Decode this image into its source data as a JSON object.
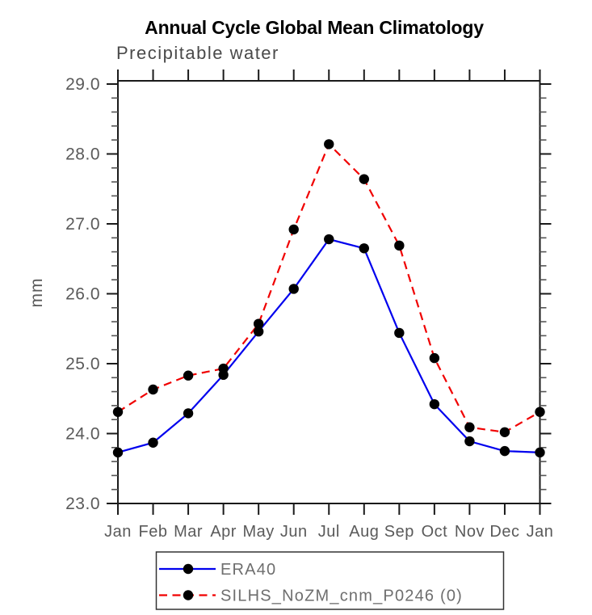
{
  "page": {
    "background": "#ffffff"
  },
  "colors": {
    "axis": "#1a1a1a",
    "minor_tick": "#555555",
    "tick_label": "#5a5a5a",
    "subtitle_text": "#4a4a4a",
    "legend_text": "#6e6e6e",
    "title_text": "#000000",
    "marker": "#000000",
    "series_blue": "#0000ee",
    "series_red": "#f00000"
  },
  "chart_data": {
    "type": "line",
    "title": "Annual Cycle Global Mean Climatology",
    "subtitle": "Precipitable water",
    "xlabel": "",
    "ylabel": "mm",
    "categories": [
      "Jan",
      "Feb",
      "Mar",
      "Apr",
      "May",
      "Jun",
      "Jul",
      "Aug",
      "Sep",
      "Oct",
      "Nov",
      "Dec",
      "Jan"
    ],
    "ylim": [
      23.0,
      29.0
    ],
    "ytick_values": [
      23.0,
      24.0,
      25.0,
      26.0,
      27.0,
      28.0,
      29.0
    ],
    "ytick_labels": [
      "23.0",
      "24.0",
      "25.0",
      "26.0",
      "27.0",
      "28.0",
      "29.0"
    ],
    "y_minor_tick_step": 0.2,
    "grid": false,
    "tick_direction": "outward",
    "legend_position": "bottom-center",
    "series": [
      {
        "name": "ERA40",
        "color": "#0000ee",
        "line_style": "solid",
        "marker": "filled-circle",
        "marker_color": "#000000",
        "values": [
          23.73,
          23.87,
          24.29,
          24.84,
          25.46,
          26.07,
          26.78,
          26.65,
          25.44,
          24.42,
          23.89,
          23.75,
          23.73
        ]
      },
      {
        "name": "SILHS_NoZM_cnm_P0246 (0)",
        "color": "#f00000",
        "line_style": "dashed",
        "marker": "filled-circle",
        "marker_color": "#000000",
        "values": [
          24.31,
          24.63,
          24.83,
          24.93,
          25.57,
          26.92,
          28.14,
          27.64,
          26.69,
          25.08,
          24.09,
          24.02,
          24.31
        ]
      }
    ]
  }
}
